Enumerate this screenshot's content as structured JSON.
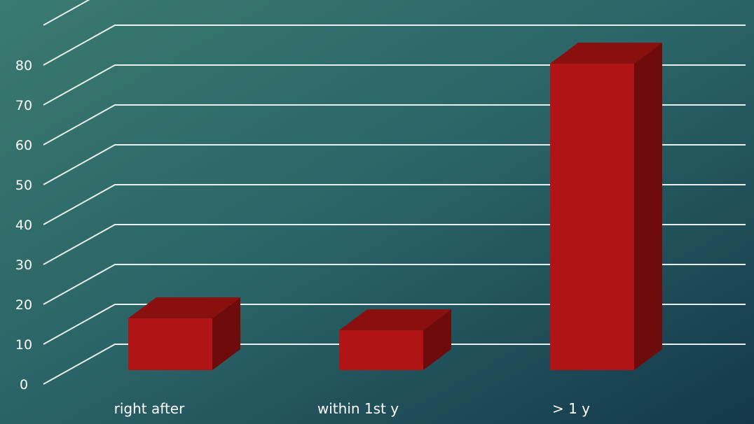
{
  "colors": {
    "background_start": "#3a7a70",
    "background_mid": "#2a6366",
    "background_end": "#14384a",
    "gridline": "#e8f0ee",
    "bar_front": "#b01414",
    "bar_top": "#8a1010",
    "bar_side": "#6e0c0c",
    "text": "#ffffff"
  },
  "chart_data": {
    "type": "bar",
    "style": "3d-column",
    "categories": [
      "right after",
      "within 1st y",
      "> 1 y"
    ],
    "values": [
      13,
      10,
      77
    ],
    "ylim": [
      0,
      80
    ],
    "yticks": [
      0,
      10,
      20,
      30,
      40,
      50,
      60,
      70,
      80
    ],
    "ytick_labels": [
      "0",
      "10",
      "20",
      "30",
      "40",
      "50",
      "60",
      "70",
      "80"
    ],
    "grid": true,
    "legend": "none",
    "title": "",
    "xlabel": "",
    "ylabel": ""
  }
}
